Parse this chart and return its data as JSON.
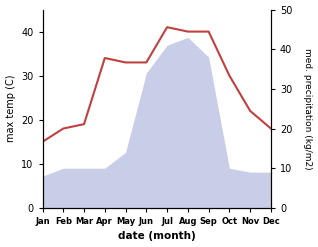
{
  "months": [
    "Jan",
    "Feb",
    "Mar",
    "Apr",
    "May",
    "Jun",
    "Jul",
    "Aug",
    "Sep",
    "Oct",
    "Nov",
    "Dec"
  ],
  "max_temp": [
    15,
    18,
    19,
    34,
    33,
    33,
    41,
    40,
    40,
    30,
    22,
    18
  ],
  "precipitation": [
    8,
    10,
    10,
    10,
    14,
    34,
    41,
    43,
    38,
    10,
    9,
    9
  ],
  "temp_color": "#c04040",
  "precip_fill_color": "#c8cee8",
  "temp_ylim": [
    0,
    45
  ],
  "precip_ylim": [
    0,
    50
  ],
  "temp_yticks": [
    0,
    10,
    20,
    30,
    40
  ],
  "precip_yticks": [
    0,
    10,
    20,
    30,
    40,
    50
  ],
  "ylabel_left": "max temp (C)",
  "ylabel_right": "med. precipitation (kg/m2)",
  "xlabel": "date (month)",
  "bg_color": "#ffffff",
  "fig_width": 3.18,
  "fig_height": 2.47,
  "dpi": 100
}
